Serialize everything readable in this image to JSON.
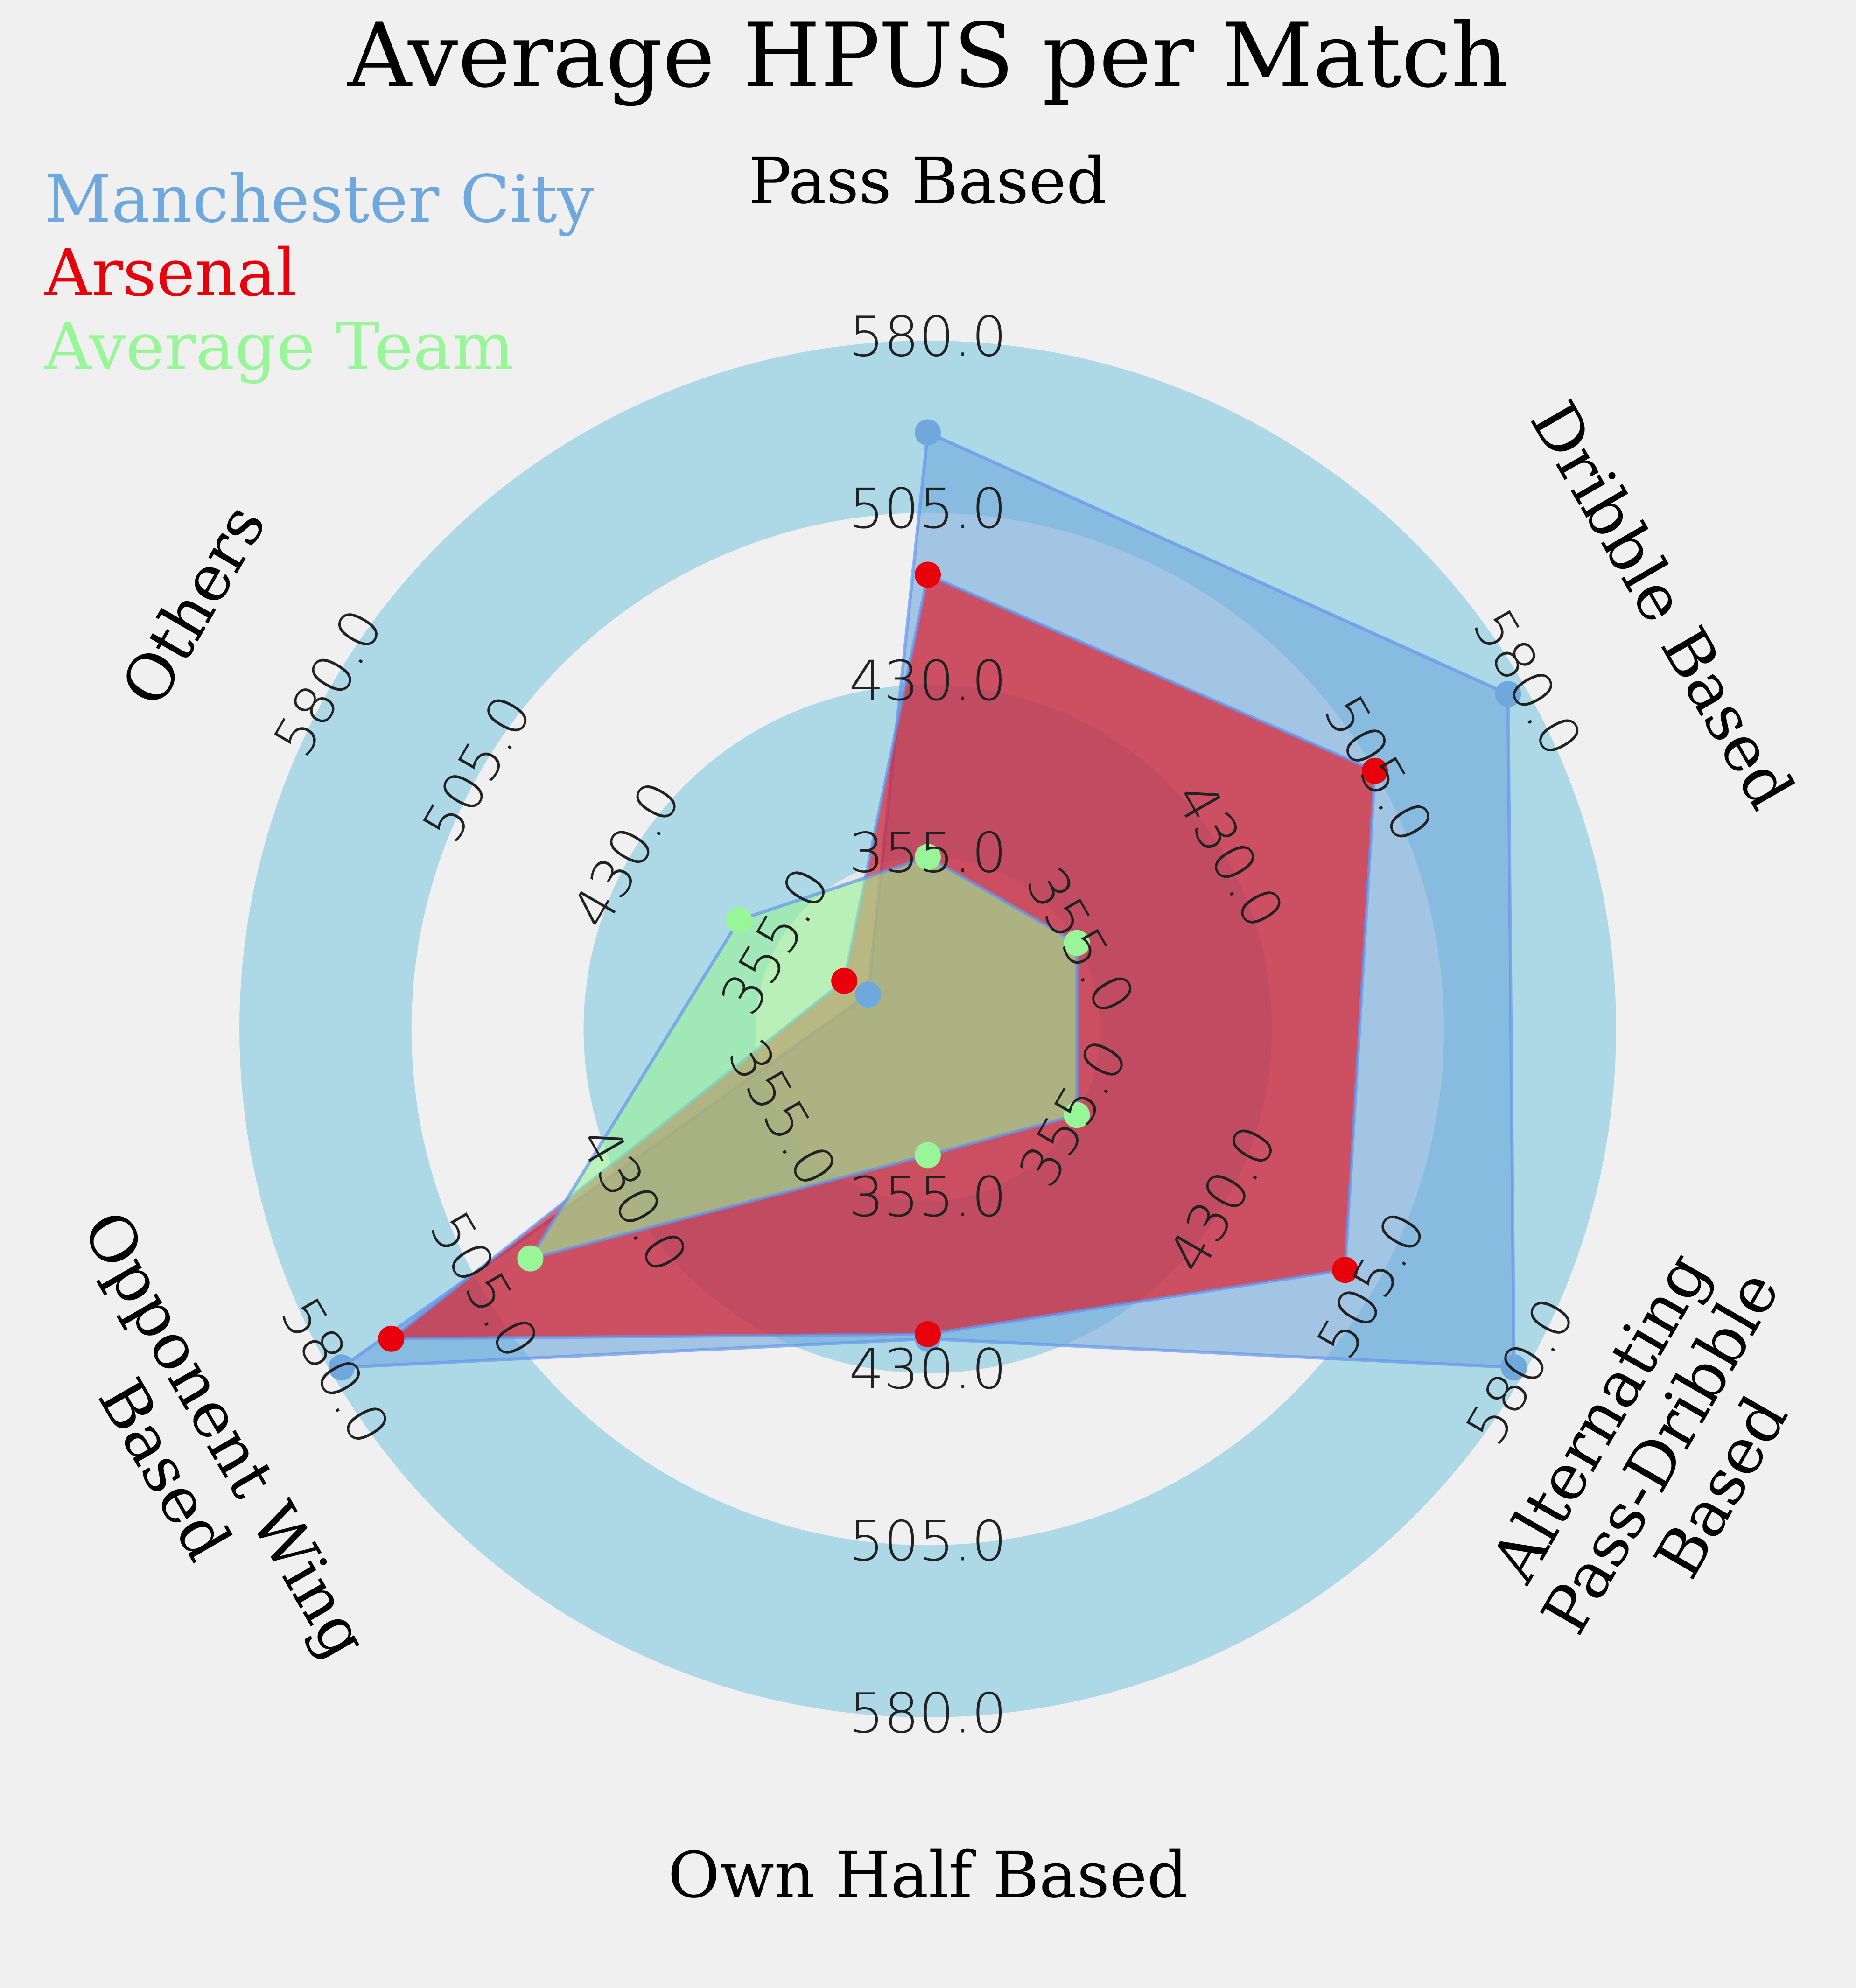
{
  "chart_data": {
    "type": "radar",
    "title": "Average HPUS per Match",
    "categories": [
      "Pass Based",
      "Dribble Based",
      "Alternating\nPass-Dribble\nBased",
      "Own Half Based",
      "Opponent Wing\nBased",
      "Others"
    ],
    "ticks": [
      355.0,
      430.0,
      505.0,
      580.0
    ],
    "tick_labels": [
      "355.0",
      "430.0",
      "505.0",
      "580.0"
    ],
    "range": [
      280,
      580
    ],
    "series": [
      {
        "name": "Manchester City",
        "color": "#6fa8dc",
        "values": [
          540,
          572,
          575,
          415,
          575,
          310
        ]
      },
      {
        "name": "Arsenal",
        "color": "#e8000b",
        "values": [
          478,
          505,
          490,
          413,
          550,
          322
        ]
      },
      {
        "name": "Average Team",
        "color": "#98f598",
        "values": [
          355,
          355,
          355,
          335,
          480,
          375
        ]
      }
    ],
    "legend_position": "top-left",
    "grid": true
  }
}
